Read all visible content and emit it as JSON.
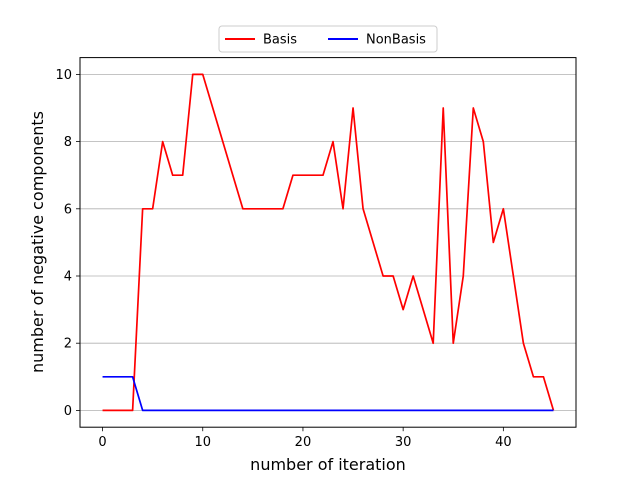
{
  "chart_data": {
    "type": "line",
    "title": "",
    "xlabel": "number of iteration",
    "ylabel": "number of negative components",
    "xlim": [
      -2.25,
      47.25
    ],
    "ylim": [
      -0.5,
      10.5
    ],
    "xticks": [
      0,
      10,
      20,
      30,
      40
    ],
    "yticks": [
      0,
      2,
      4,
      6,
      8,
      10
    ],
    "grid": "y-major",
    "legend_placement": "top-center, above plot",
    "x": [
      0,
      1,
      2,
      3,
      4,
      5,
      6,
      7,
      8,
      9,
      10,
      11,
      12,
      13,
      14,
      15,
      16,
      17,
      18,
      19,
      20,
      21,
      22,
      23,
      24,
      25,
      26,
      27,
      28,
      29,
      30,
      31,
      32,
      33,
      34,
      35,
      36,
      37,
      38,
      39,
      40,
      41,
      42,
      43,
      44,
      45
    ],
    "series": [
      {
        "name": "Basis",
        "color": "#ff0000",
        "values": [
          0,
          0,
          0,
          0,
          6,
          6,
          8,
          7,
          7,
          10,
          10,
          9,
          8,
          7,
          6,
          6,
          6,
          6,
          6,
          7,
          7,
          7,
          7,
          8,
          6,
          9,
          6,
          5,
          4,
          4,
          3,
          4,
          3,
          2,
          9,
          2,
          4,
          9,
          8,
          5,
          6,
          4,
          2,
          1,
          1,
          0
        ]
      },
      {
        "name": "NonBasis",
        "color": "#0000ff",
        "values": [
          1,
          1,
          1,
          1,
          0,
          0,
          0,
          0,
          0,
          0,
          0,
          0,
          0,
          0,
          0,
          0,
          0,
          0,
          0,
          0,
          0,
          0,
          0,
          0,
          0,
          0,
          0,
          0,
          0,
          0,
          0,
          0,
          0,
          0,
          0,
          0,
          0,
          0,
          0,
          0,
          0,
          0,
          0,
          0,
          0,
          0
        ]
      }
    ]
  }
}
